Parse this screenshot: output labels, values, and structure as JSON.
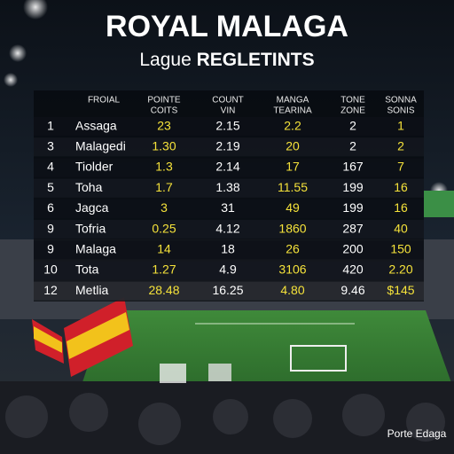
{
  "header": {
    "title": "ROYAL MALAGA",
    "subtitle_plain": "Lague",
    "subtitle_bold": "REGLETINTS"
  },
  "table": {
    "columns": [
      [
        "FROIAL"
      ],
      [
        "POINTE",
        "COITS"
      ],
      [
        "COUNT",
        "VIN"
      ],
      [
        "MANGA",
        "TEARINA"
      ],
      [
        "TONE",
        "ZONE"
      ],
      [
        "SONNA",
        "SONIS"
      ]
    ],
    "rows": [
      [
        "1",
        "Assaga",
        "23",
        "2.15",
        "2.2",
        "2",
        "1"
      ],
      [
        "3",
        "Malagedi",
        "1.30",
        "2.19",
        "20",
        "2",
        "2"
      ],
      [
        "4",
        "Tiolder",
        "1.3",
        "2.14",
        "17",
        "167",
        "7"
      ],
      [
        "5",
        "Toha",
        "1.7",
        "1.38",
        "11.55",
        "199",
        "16"
      ],
      [
        "6",
        "Jagca",
        "3",
        "31",
        "49",
        "199",
        "16"
      ],
      [
        "9",
        "Tofria",
        "0.25",
        "4.12",
        "1860",
        "287",
        "40"
      ],
      [
        "9",
        "Malaga",
        "14",
        "18",
        "26",
        "200",
        "150"
      ],
      [
        "10",
        "Tota",
        "1.27",
        "4.9",
        "3106",
        "420",
        "2.20"
      ],
      [
        "12",
        "Metlia",
        "28.48",
        "16.25",
        "4.80",
        "9.46",
        "$145"
      ]
    ]
  },
  "watermark": "Porte Edaga"
}
